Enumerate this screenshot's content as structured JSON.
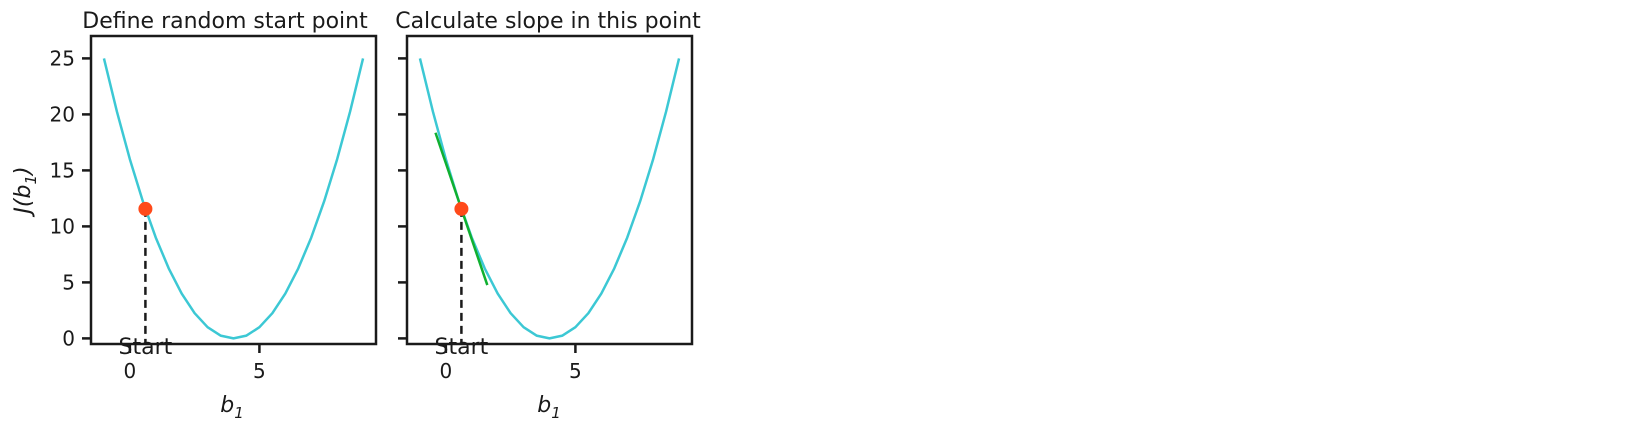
{
  "chart_data": [
    {
      "type": "line",
      "title": "Define random start point",
      "xlabel": "b",
      "xlabel_sub": "1",
      "ylabel_prefix": "J(b",
      "ylabel_sub": "1",
      "ylabel_suffix": ")",
      "xlim": [
        -1.5,
        9.5
      ],
      "ylim": [
        -0.5,
        27
      ],
      "xticks": [
        0,
        5
      ],
      "yticks": [
        0,
        5,
        10,
        15,
        20,
        25
      ],
      "series": [
        {
          "kind": "curve",
          "color": "#3cc8d4",
          "x": [
            -1,
            -0.5,
            0,
            0.5,
            1,
            1.5,
            2,
            2.5,
            3,
            3.5,
            4,
            4.5,
            5,
            5.5,
            6,
            6.5,
            7,
            7.5,
            8,
            8.5,
            9
          ],
          "y": [
            25,
            20.25,
            16,
            12.25,
            9,
            6.25,
            4,
            2.25,
            1,
            0.25,
            0,
            0.25,
            1,
            2.25,
            4,
            6.25,
            9,
            12.25,
            16,
            20.25,
            25
          ]
        }
      ],
      "start_point": {
        "x": 0.6,
        "y": 11.56,
        "color": "#ff4a1a"
      },
      "dashed_line_color": "#1a1a1a",
      "annotation": "Start"
    },
    {
      "type": "line",
      "title": "Calculate slope in this point",
      "xlabel": "b",
      "xlabel_sub": "1",
      "xlim": [
        -1.5,
        9.5
      ],
      "ylim": [
        -0.5,
        27
      ],
      "xticks": [
        0,
        5
      ],
      "yticks": [
        0,
        5,
        10,
        15,
        20,
        25
      ],
      "series": [
        {
          "kind": "curve",
          "color": "#3cc8d4",
          "x": [
            -1,
            -0.5,
            0,
            0.5,
            1,
            1.5,
            2,
            2.5,
            3,
            3.5,
            4,
            4.5,
            5,
            5.5,
            6,
            6.5,
            7,
            7.5,
            8,
            8.5,
            9
          ],
          "y": [
            25,
            20.25,
            16,
            12.25,
            9,
            6.25,
            4,
            2.25,
            1,
            0.25,
            0,
            0.25,
            1,
            2.25,
            4,
            6.25,
            9,
            12.25,
            16,
            20.25,
            25
          ]
        },
        {
          "kind": "tangent",
          "color": "#10b030",
          "x": [
            -0.4,
            1.6
          ],
          "y": [
            18.36,
            4.76
          ]
        }
      ],
      "start_point": {
        "x": 0.6,
        "y": 11.56,
        "color": "#ff4a1a"
      },
      "dashed_line_color": "#1a1a1a",
      "annotation": "Start"
    }
  ]
}
